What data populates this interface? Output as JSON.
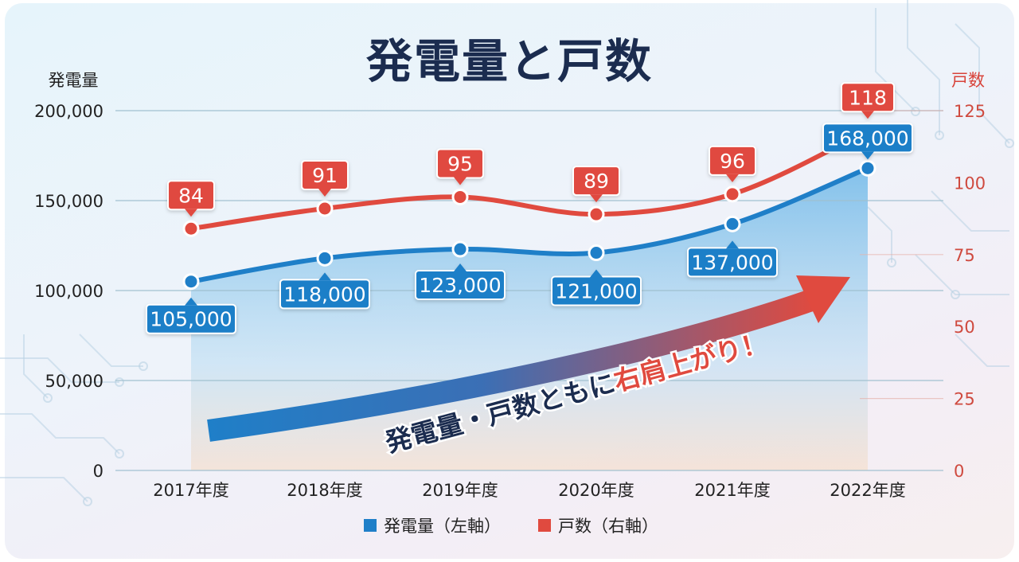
{
  "chart_data": {
    "type": "line",
    "title": "発電量と戸数",
    "left_axis_label": "発電量",
    "right_axis_label": "戸数",
    "categories": [
      "2017年度",
      "2018年度",
      "2019年度",
      "2020年度",
      "2021年度",
      "2022年度"
    ],
    "left_ticks": [
      "0",
      "50,000",
      "100,000",
      "150,000",
      "200,000"
    ],
    "right_ticks": [
      "0",
      "25",
      "50",
      "75",
      "100",
      "125"
    ],
    "ylim_left": [
      0,
      200000
    ],
    "ylim_right": [
      0,
      125
    ],
    "series": [
      {
        "name": "発電量（左軸）",
        "axis": "left",
        "color": "#1f7fc8",
        "values": [
          105000,
          118000,
          123000,
          121000,
          137000,
          168000
        ],
        "labels": [
          "105,000",
          "118,000",
          "123,000",
          "121,000",
          "137,000",
          "168,000"
        ]
      },
      {
        "name": "戸数（右軸）",
        "axis": "right",
        "color": "#e04a3f",
        "values": [
          84,
          91,
          95,
          89,
          96,
          118
        ],
        "labels": [
          "84",
          "91",
          "95",
          "89",
          "96",
          "118"
        ]
      }
    ],
    "annotation": {
      "prefix": "発電量・戸数ともに",
      "highlight": "右肩上がり！"
    },
    "legend_position": "bottom",
    "grid": true
  }
}
